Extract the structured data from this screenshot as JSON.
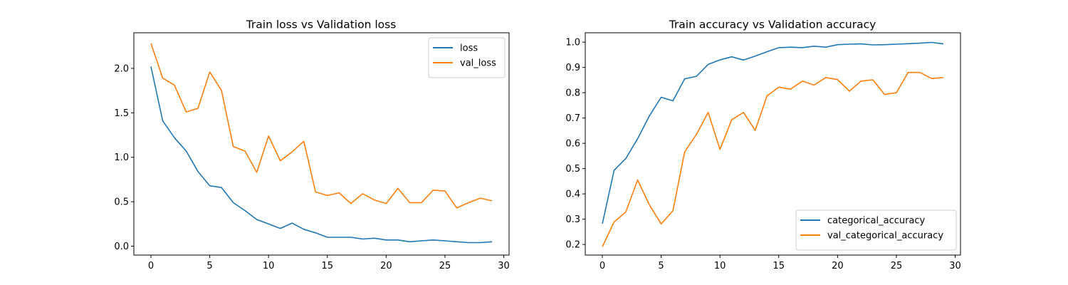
{
  "chart_data": [
    {
      "type": "line",
      "title": "Train loss vs Validation loss",
      "xlabel": "",
      "ylabel": "",
      "xlim": [
        -1.45,
        30.45
      ],
      "ylim": [
        -0.1,
        2.4
      ],
      "xticks": [
        0,
        5,
        10,
        15,
        20,
        25,
        30
      ],
      "xtick_labels": [
        "0",
        "5",
        "10",
        "15",
        "20",
        "25",
        "30"
      ],
      "yticks": [
        0.0,
        0.5,
        1.0,
        1.5,
        2.0
      ],
      "ytick_labels": [
        "0.0",
        "0.5",
        "1.0",
        "1.5",
        "2.0"
      ],
      "grid": false,
      "legend_position": "top-right",
      "x": [
        0,
        1,
        2,
        3,
        4,
        5,
        6,
        7,
        8,
        9,
        10,
        11,
        12,
        13,
        14,
        15,
        16,
        17,
        18,
        19,
        20,
        21,
        22,
        23,
        24,
        25,
        26,
        27,
        28,
        29
      ],
      "series": [
        {
          "name": "loss",
          "color": "#1f77b4",
          "values": [
            2.02,
            1.41,
            1.22,
            1.07,
            0.84,
            0.68,
            0.66,
            0.49,
            0.4,
            0.3,
            0.25,
            0.2,
            0.26,
            0.19,
            0.15,
            0.1,
            0.1,
            0.1,
            0.08,
            0.09,
            0.07,
            0.07,
            0.05,
            0.06,
            0.07,
            0.06,
            0.05,
            0.04,
            0.04,
            0.05
          ]
        },
        {
          "name": "val_loss",
          "color": "#ff7f0e",
          "values": [
            2.28,
            1.89,
            1.81,
            1.51,
            1.55,
            1.96,
            1.75,
            1.12,
            1.07,
            0.83,
            1.24,
            0.96,
            1.06,
            1.18,
            0.61,
            0.57,
            0.6,
            0.48,
            0.59,
            0.52,
            0.48,
            0.65,
            0.49,
            0.49,
            0.63,
            0.62,
            0.43,
            0.49,
            0.54,
            0.51
          ]
        }
      ]
    },
    {
      "type": "line",
      "title": "Train accuracy vs Validation accuracy",
      "xlabel": "",
      "ylabel": "",
      "xlim": [
        -1.45,
        30.45
      ],
      "ylim": [
        0.158,
        1.037
      ],
      "xticks": [
        0,
        5,
        10,
        15,
        20,
        25,
        30
      ],
      "xtick_labels": [
        "0",
        "5",
        "10",
        "15",
        "20",
        "25",
        "30"
      ],
      "yticks": [
        0.2,
        0.3,
        0.4,
        0.5,
        0.6,
        0.7,
        0.8,
        0.9,
        1.0
      ],
      "ytick_labels": [
        "0.2",
        "0.3",
        "0.4",
        "0.5",
        "0.6",
        "0.7",
        "0.8",
        "0.9",
        "1.0"
      ],
      "grid": false,
      "legend_position": "bottom-right",
      "x": [
        0,
        1,
        2,
        3,
        4,
        5,
        6,
        7,
        8,
        9,
        10,
        11,
        12,
        13,
        14,
        15,
        16,
        17,
        18,
        19,
        20,
        21,
        22,
        23,
        24,
        25,
        26,
        27,
        28,
        29
      ],
      "series": [
        {
          "name": "categorical_accuracy",
          "color": "#1f77b4",
          "values": [
            0.282,
            0.493,
            0.54,
            0.618,
            0.708,
            0.782,
            0.768,
            0.855,
            0.865,
            0.912,
            0.93,
            0.942,
            0.929,
            0.945,
            0.962,
            0.978,
            0.98,
            0.978,
            0.984,
            0.98,
            0.99,
            0.992,
            0.993,
            0.989,
            0.99,
            0.992,
            0.994,
            0.996,
            0.999,
            0.993
          ]
        },
        {
          "name": "val_categorical_accuracy",
          "color": "#ff7f0e",
          "values": [
            0.191,
            0.289,
            0.329,
            0.455,
            0.357,
            0.281,
            0.333,
            0.566,
            0.635,
            0.722,
            0.576,
            0.693,
            0.722,
            0.651,
            0.787,
            0.822,
            0.814,
            0.846,
            0.83,
            0.86,
            0.852,
            0.806,
            0.846,
            0.851,
            0.793,
            0.8,
            0.88,
            0.88,
            0.856,
            0.86
          ]
        }
      ]
    }
  ]
}
